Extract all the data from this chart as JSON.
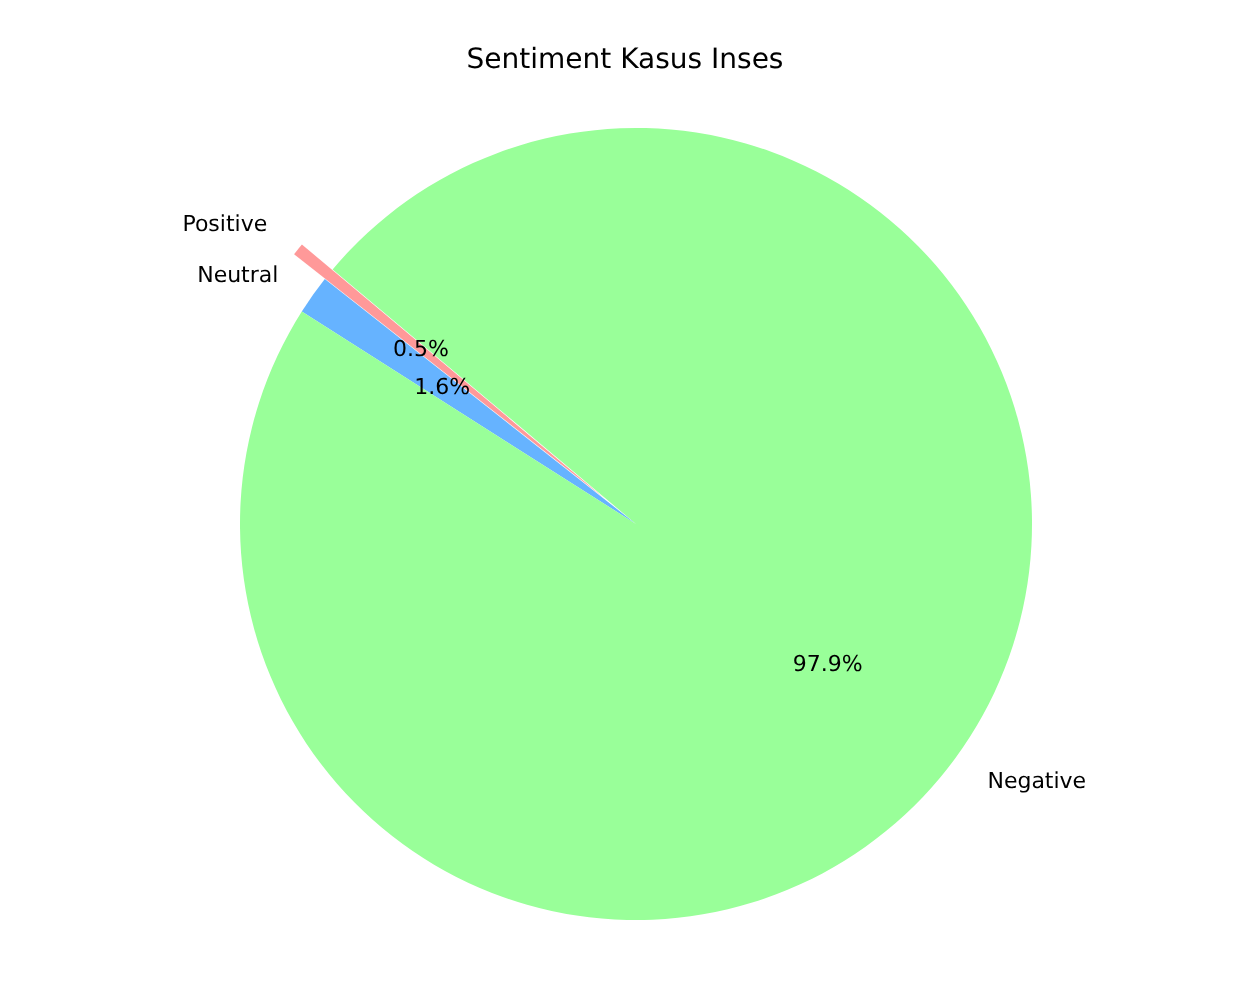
{
  "chart_data": {
    "type": "pie",
    "title": "Sentiment Kasus Inses",
    "categories": [
      "Positive",
      "Neutral",
      "Negative"
    ],
    "values": [
      0.5,
      1.6,
      97.9
    ],
    "colors": [
      "#ff9999",
      "#66b3ff",
      "#99ff99"
    ],
    "value_labels": [
      "0.5%",
      "1.6%",
      "97.9%"
    ],
    "legend": false
  }
}
